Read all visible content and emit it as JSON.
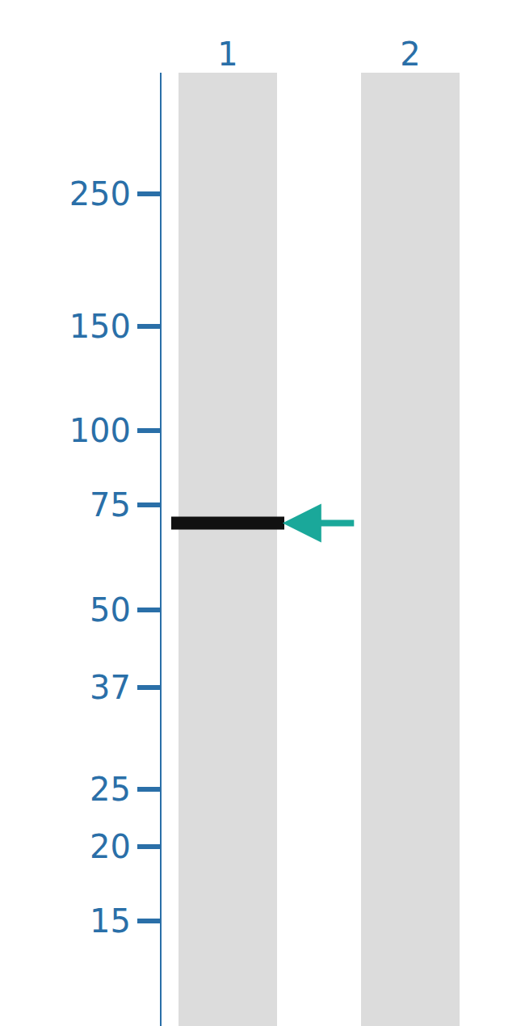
{
  "chart_data": {
    "type": "western_blot",
    "categories": [
      "1",
      "2"
    ],
    "values": [
      70,
      null
    ],
    "color": "#111111",
    "ylim": [
      10,
      400
    ],
    "yticks": [
      250,
      150,
      100,
      75,
      50,
      37,
      25,
      20,
      15
    ],
    "log": "y"
  }
}
